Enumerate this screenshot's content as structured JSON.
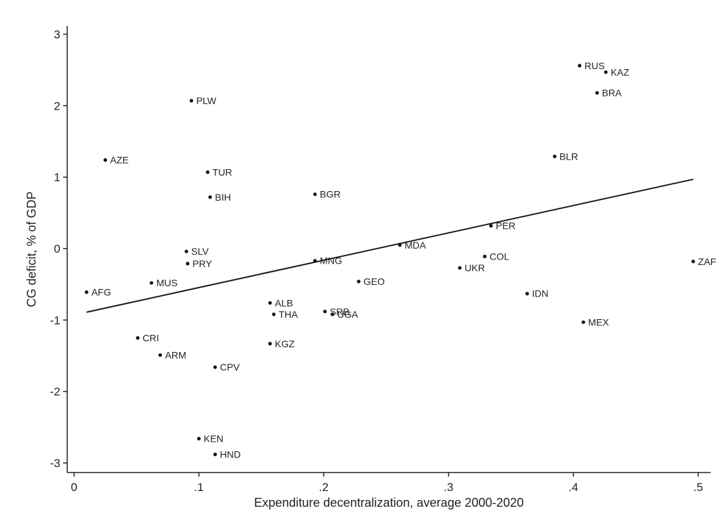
{
  "chart_data": {
    "type": "scatter",
    "title": "",
    "xlabel": "Expenditure decentralization, average 2000-2020",
    "ylabel": "CG deficit, % of GDP",
    "xlim": [
      0,
      0.5
    ],
    "ylim": [
      -3,
      3
    ],
    "x_ticks": [
      {
        "value": 0,
        "label": "0"
      },
      {
        "value": 0.1,
        "label": ".1"
      },
      {
        "value": 0.2,
        "label": ".2"
      },
      {
        "value": 0.3,
        "label": ".3"
      },
      {
        "value": 0.4,
        "label": ".4"
      },
      {
        "value": 0.5,
        "label": ".5"
      }
    ],
    "y_ticks": [
      {
        "value": 3,
        "label": "3"
      },
      {
        "value": 2,
        "label": "2"
      },
      {
        "value": 1,
        "label": "1"
      },
      {
        "value": 0,
        "label": "0"
      },
      {
        "value": -1,
        "label": "-1"
      },
      {
        "value": -2,
        "label": "-2"
      },
      {
        "value": -3,
        "label": "-3"
      }
    ],
    "grid": false,
    "points": [
      {
        "label": "RUS",
        "x": 0.405,
        "y": 2.56
      },
      {
        "label": "KAZ",
        "x": 0.426,
        "y": 2.47
      },
      {
        "label": "BRA",
        "x": 0.419,
        "y": 2.18
      },
      {
        "label": "PLW",
        "x": 0.094,
        "y": 2.07
      },
      {
        "label": "BLR",
        "x": 0.385,
        "y": 1.29
      },
      {
        "label": "AZE",
        "x": 0.025,
        "y": 1.24
      },
      {
        "label": "TUR",
        "x": 0.107,
        "y": 1.07
      },
      {
        "label": "BGR",
        "x": 0.193,
        "y": 0.76
      },
      {
        "label": "BIH",
        "x": 0.109,
        "y": 0.72
      },
      {
        "label": "PER",
        "x": 0.334,
        "y": 0.32
      },
      {
        "label": "MDA",
        "x": 0.261,
        "y": 0.05
      },
      {
        "label": "SLV",
        "x": 0.09,
        "y": -0.04
      },
      {
        "label": "COL",
        "x": 0.329,
        "y": -0.11
      },
      {
        "label": "MNG",
        "x": 0.193,
        "y": -0.17
      },
      {
        "label": "ZAF",
        "x": 0.496,
        "y": -0.18
      },
      {
        "label": "PRY",
        "x": 0.091,
        "y": -0.21
      },
      {
        "label": "UKR",
        "x": 0.309,
        "y": -0.27
      },
      {
        "label": "MUS",
        "x": 0.062,
        "y": -0.48
      },
      {
        "label": "GEO",
        "x": 0.228,
        "y": -0.46
      },
      {
        "label": "AFG",
        "x": 0.01,
        "y": -0.61
      },
      {
        "label": "IDN",
        "x": 0.363,
        "y": -0.63
      },
      {
        "label": "ALB",
        "x": 0.157,
        "y": -0.76
      },
      {
        "label": "SRB",
        "x": 0.201,
        "y": -0.88
      },
      {
        "label": "UGA",
        "x": 0.207,
        "y": -0.92
      },
      {
        "label": "THA",
        "x": 0.16,
        "y": -0.92
      },
      {
        "label": "MEX",
        "x": 0.408,
        "y": -1.03
      },
      {
        "label": "CRI",
        "x": 0.051,
        "y": -1.25
      },
      {
        "label": "KGZ",
        "x": 0.157,
        "y": -1.33
      },
      {
        "label": "ARM",
        "x": 0.069,
        "y": -1.49
      },
      {
        "label": "CPV",
        "x": 0.113,
        "y": -1.66
      },
      {
        "label": "KEN",
        "x": 0.1,
        "y": -2.66
      },
      {
        "label": "HND",
        "x": 0.113,
        "y": -2.88
      }
    ],
    "fit_line": {
      "x": [
        0.01,
        0.496
      ],
      "y": [
        -0.89,
        0.97
      ]
    },
    "colors": {
      "points": "#111111",
      "line": "#1a1a1a",
      "text": "#222222"
    }
  }
}
